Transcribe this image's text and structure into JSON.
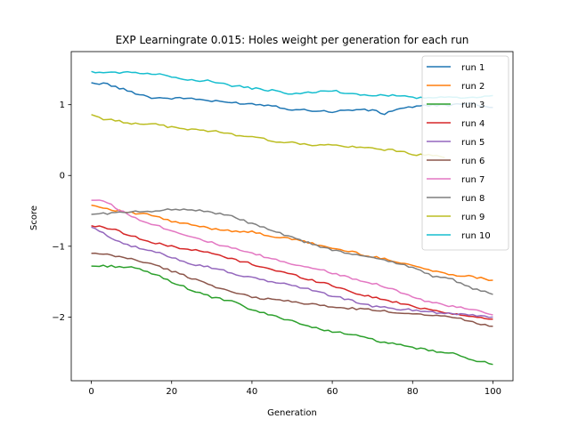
{
  "chart_data": {
    "type": "line",
    "title": "EXP Learningrate 0.015: Holes weight per generation for each run",
    "xlabel": "Generation",
    "ylabel": "Score",
    "xlim": [
      -5,
      105
    ],
    "ylim": [
      -2.9,
      1.75
    ],
    "xticks": [
      0,
      20,
      40,
      60,
      80,
      100
    ],
    "yticks": [
      -2,
      -1,
      0,
      1
    ],
    "grid": false,
    "legend_position": "top-right",
    "series_anchors": [
      {
        "name": "run 1",
        "color": "#1f77b4",
        "points": [
          [
            0,
            1.31
          ],
          [
            1,
            1.29
          ],
          [
            3,
            1.31
          ],
          [
            5,
            1.27
          ],
          [
            10,
            1.18
          ],
          [
            15,
            1.1
          ],
          [
            20,
            1.09
          ],
          [
            25,
            1.09
          ],
          [
            30,
            1.05
          ],
          [
            35,
            1.03
          ],
          [
            40,
            1.01
          ],
          [
            45,
            0.99
          ],
          [
            50,
            0.93
          ],
          [
            55,
            0.92
          ],
          [
            60,
            0.9
          ],
          [
            65,
            0.93
          ],
          [
            70,
            0.92
          ],
          [
            73,
            0.87
          ],
          [
            76,
            0.94
          ],
          [
            80,
            0.97
          ],
          [
            85,
            0.99
          ],
          [
            90,
            1.0
          ],
          [
            95,
            1.01
          ],
          [
            100,
            0.96
          ]
        ]
      },
      {
        "name": "run 2",
        "color": "#ff7f0e",
        "points": [
          [
            0,
            -0.42
          ],
          [
            5,
            -0.48
          ],
          [
            10,
            -0.53
          ],
          [
            15,
            -0.56
          ],
          [
            20,
            -0.65
          ],
          [
            25,
            -0.7
          ],
          [
            30,
            -0.75
          ],
          [
            35,
            -0.78
          ],
          [
            40,
            -0.8
          ],
          [
            45,
            -0.86
          ],
          [
            50,
            -0.9
          ],
          [
            55,
            -0.96
          ],
          [
            60,
            -1.03
          ],
          [
            65,
            -1.08
          ],
          [
            70,
            -1.15
          ],
          [
            75,
            -1.2
          ],
          [
            80,
            -1.27
          ],
          [
            85,
            -1.35
          ],
          [
            90,
            -1.4
          ],
          [
            95,
            -1.43
          ],
          [
            100,
            -1.48
          ]
        ]
      },
      {
        "name": "run 3",
        "color": "#2ca02c",
        "points": [
          [
            0,
            -1.28
          ],
          [
            5,
            -1.28
          ],
          [
            10,
            -1.3
          ],
          [
            15,
            -1.38
          ],
          [
            20,
            -1.5
          ],
          [
            25,
            -1.62
          ],
          [
            30,
            -1.72
          ],
          [
            35,
            -1.78
          ],
          [
            40,
            -1.9
          ],
          [
            45,
            -1.98
          ],
          [
            50,
            -2.05
          ],
          [
            55,
            -2.15
          ],
          [
            60,
            -2.2
          ],
          [
            65,
            -2.25
          ],
          [
            70,
            -2.32
          ],
          [
            75,
            -2.38
          ],
          [
            80,
            -2.43
          ],
          [
            85,
            -2.48
          ],
          [
            90,
            -2.52
          ],
          [
            95,
            -2.6
          ],
          [
            100,
            -2.67
          ]
        ]
      },
      {
        "name": "run 4",
        "color": "#d62728",
        "points": [
          [
            0,
            -0.71
          ],
          [
            5,
            -0.75
          ],
          [
            10,
            -0.85
          ],
          [
            15,
            -0.95
          ],
          [
            20,
            -1.0
          ],
          [
            25,
            -1.05
          ],
          [
            30,
            -1.1
          ],
          [
            35,
            -1.18
          ],
          [
            40,
            -1.25
          ],
          [
            45,
            -1.33
          ],
          [
            50,
            -1.4
          ],
          [
            55,
            -1.48
          ],
          [
            60,
            -1.55
          ],
          [
            65,
            -1.65
          ],
          [
            70,
            -1.72
          ],
          [
            75,
            -1.78
          ],
          [
            80,
            -1.85
          ],
          [
            85,
            -1.9
          ],
          [
            90,
            -1.95
          ],
          [
            95,
            -2.0
          ],
          [
            100,
            -2.03
          ]
        ]
      },
      {
        "name": "run 5",
        "color": "#9467bd",
        "points": [
          [
            0,
            -0.73
          ],
          [
            5,
            -0.88
          ],
          [
            10,
            -1.0
          ],
          [
            15,
            -1.07
          ],
          [
            20,
            -1.15
          ],
          [
            25,
            -1.25
          ],
          [
            30,
            -1.3
          ],
          [
            35,
            -1.38
          ],
          [
            40,
            -1.45
          ],
          [
            45,
            -1.5
          ],
          [
            50,
            -1.55
          ],
          [
            55,
            -1.62
          ],
          [
            60,
            -1.7
          ],
          [
            65,
            -1.77
          ],
          [
            70,
            -1.85
          ],
          [
            75,
            -1.88
          ],
          [
            80,
            -1.9
          ],
          [
            85,
            -1.93
          ],
          [
            90,
            -1.95
          ],
          [
            95,
            -1.97
          ],
          [
            100,
            -2.0
          ]
        ]
      },
      {
        "name": "run 6",
        "color": "#8c564b",
        "points": [
          [
            0,
            -1.1
          ],
          [
            5,
            -1.13
          ],
          [
            10,
            -1.18
          ],
          [
            15,
            -1.25
          ],
          [
            20,
            -1.35
          ],
          [
            25,
            -1.45
          ],
          [
            30,
            -1.55
          ],
          [
            35,
            -1.65
          ],
          [
            40,
            -1.72
          ],
          [
            45,
            -1.75
          ],
          [
            50,
            -1.78
          ],
          [
            55,
            -1.82
          ],
          [
            60,
            -1.86
          ],
          [
            65,
            -1.88
          ],
          [
            70,
            -1.9
          ],
          [
            75,
            -1.93
          ],
          [
            80,
            -1.95
          ],
          [
            85,
            -1.97
          ],
          [
            90,
            -2.0
          ],
          [
            95,
            -2.07
          ],
          [
            100,
            -2.13
          ]
        ]
      },
      {
        "name": "run 7",
        "color": "#e377c2",
        "points": [
          [
            0,
            -0.35
          ],
          [
            3,
            -0.35
          ],
          [
            5,
            -0.42
          ],
          [
            10,
            -0.58
          ],
          [
            15,
            -0.68
          ],
          [
            20,
            -0.78
          ],
          [
            25,
            -0.86
          ],
          [
            30,
            -0.95
          ],
          [
            35,
            -1.03
          ],
          [
            40,
            -1.1
          ],
          [
            45,
            -1.18
          ],
          [
            50,
            -1.25
          ],
          [
            55,
            -1.3
          ],
          [
            60,
            -1.38
          ],
          [
            65,
            -1.45
          ],
          [
            70,
            -1.52
          ],
          [
            75,
            -1.6
          ],
          [
            80,
            -1.72
          ],
          [
            85,
            -1.8
          ],
          [
            90,
            -1.85
          ],
          [
            95,
            -1.9
          ],
          [
            100,
            -1.97
          ]
        ]
      },
      {
        "name": "run 8",
        "color": "#7f7f7f",
        "points": [
          [
            0,
            -0.55
          ],
          [
            5,
            -0.53
          ],
          [
            10,
            -0.52
          ],
          [
            15,
            -0.5
          ],
          [
            20,
            -0.48
          ],
          [
            25,
            -0.48
          ],
          [
            30,
            -0.52
          ],
          [
            35,
            -0.58
          ],
          [
            40,
            -0.68
          ],
          [
            45,
            -0.78
          ],
          [
            50,
            -0.88
          ],
          [
            55,
            -0.97
          ],
          [
            60,
            -1.05
          ],
          [
            65,
            -1.12
          ],
          [
            70,
            -1.15
          ],
          [
            75,
            -1.22
          ],
          [
            80,
            -1.3
          ],
          [
            85,
            -1.42
          ],
          [
            90,
            -1.47
          ],
          [
            95,
            -1.6
          ],
          [
            100,
            -1.68
          ]
        ]
      },
      {
        "name": "run 9",
        "color": "#bcbd22",
        "points": [
          [
            0,
            0.86
          ],
          [
            3,
            0.8
          ],
          [
            5,
            0.78
          ],
          [
            10,
            0.74
          ],
          [
            15,
            0.73
          ],
          [
            20,
            0.68
          ],
          [
            25,
            0.65
          ],
          [
            30,
            0.63
          ],
          [
            35,
            0.58
          ],
          [
            40,
            0.55
          ],
          [
            45,
            0.49
          ],
          [
            50,
            0.46
          ],
          [
            55,
            0.43
          ],
          [
            60,
            0.43
          ],
          [
            65,
            0.4
          ],
          [
            70,
            0.38
          ],
          [
            75,
            0.36
          ],
          [
            80,
            0.3
          ],
          [
            85,
            0.28
          ],
          [
            88,
            0.25
          ]
        ]
      },
      {
        "name": "run 10",
        "color": "#17becf",
        "points": [
          [
            0,
            1.47
          ],
          [
            5,
            1.45
          ],
          [
            10,
            1.46
          ],
          [
            15,
            1.44
          ],
          [
            20,
            1.4
          ],
          [
            25,
            1.35
          ],
          [
            30,
            1.33
          ],
          [
            35,
            1.27
          ],
          [
            40,
            1.23
          ],
          [
            45,
            1.2
          ],
          [
            50,
            1.15
          ],
          [
            55,
            1.17
          ],
          [
            60,
            1.2
          ],
          [
            65,
            1.15
          ],
          [
            70,
            1.13
          ],
          [
            75,
            1.13
          ],
          [
            80,
            1.1
          ],
          [
            85,
            1.1
          ],
          [
            90,
            1.1
          ],
          [
            95,
            1.1
          ],
          [
            100,
            1.13
          ]
        ]
      }
    ]
  }
}
